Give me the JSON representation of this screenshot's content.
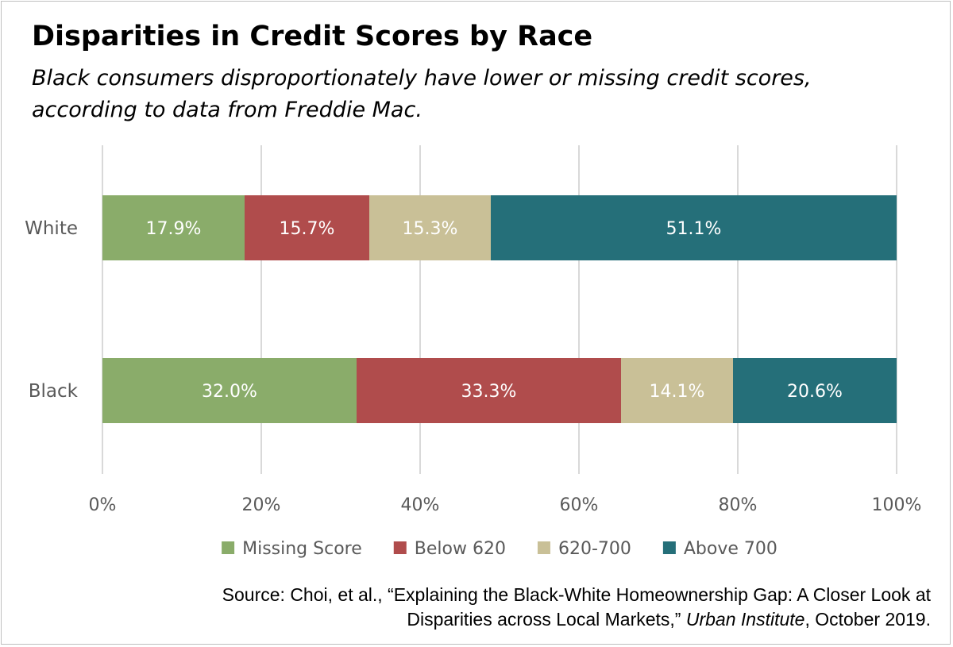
{
  "title": "Disparities in Credit Scores by Race",
  "subtitle_line1": "Black consumers disproportionately have lower or missing credit scores,",
  "subtitle_line2": "according to data from Freddie Mac.",
  "source": {
    "line1": "Source: Choi, et al., “Explaining the Black-White Homeownership Gap: A Closer Look at",
    "line2_before": "Disparities across Local Markets,” ",
    "line2_italic": "Urban Institute",
    "line2_after": ", October 2019."
  },
  "chart_data": {
    "type": "bar",
    "orientation": "horizontal",
    "stacked": true,
    "categories": [
      "White",
      "Black"
    ],
    "series": [
      {
        "name": "Missing Score",
        "values": [
          17.9,
          32.0
        ],
        "labels": [
          "17.9%",
          "32.0%"
        ],
        "color": "#8aac6a"
      },
      {
        "name": "Below 620",
        "values": [
          15.7,
          33.3
        ],
        "labels": [
          "15.7%",
          "33.3%"
        ],
        "color": "#b04c4c"
      },
      {
        "name": "620-700",
        "values": [
          15.3,
          14.1
        ],
        "labels": [
          "15.3%",
          "14.1%"
        ],
        "color": "#c9c097"
      },
      {
        "name": "Above 700",
        "values": [
          51.1,
          20.6
        ],
        "labels": [
          "51.1%",
          "20.6%"
        ],
        "color": "#256f79"
      }
    ],
    "xlim": [
      0,
      100
    ],
    "xticks": [
      "0%",
      "20%",
      "40%",
      "60%",
      "80%",
      "100%"
    ],
    "grid": true,
    "gridline_color": "#d9d9d9",
    "legend_position": "bottom"
  }
}
